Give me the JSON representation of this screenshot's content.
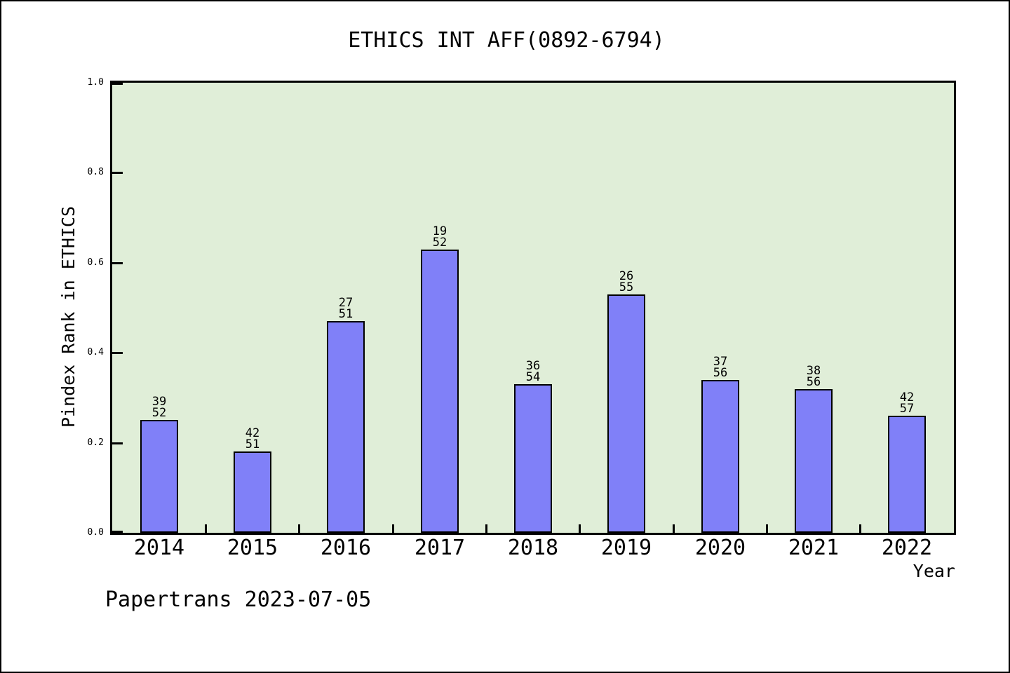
{
  "chart_data": {
    "type": "bar",
    "title": "ETHICS INT AFF(0892-6794)",
    "xlabel": "Year",
    "ylabel": "Pindex Rank in ETHICS",
    "ylim": [
      0.0,
      1.0
    ],
    "yticks": [
      0.0,
      0.2,
      0.4,
      0.6,
      0.8,
      1.0
    ],
    "grid": false,
    "legend": null,
    "categories": [
      "2014",
      "2015",
      "2016",
      "2017",
      "2018",
      "2019",
      "2020",
      "2021",
      "2022"
    ],
    "values": [
      0.25,
      0.18,
      0.47,
      0.63,
      0.33,
      0.53,
      0.34,
      0.32,
      0.26
    ],
    "bar_labels": [
      [
        "39",
        "52"
      ],
      [
        "42",
        "51"
      ],
      [
        "27",
        "51"
      ],
      [
        "19",
        "52"
      ],
      [
        "36",
        "54"
      ],
      [
        "26",
        "55"
      ],
      [
        "37",
        "56"
      ],
      [
        "38",
        "56"
      ],
      [
        "42",
        "57"
      ]
    ],
    "colors": {
      "bar_fill": "#8080f8",
      "bar_border": "#000000",
      "plot_background": "#e0eed8",
      "axis": "#000000",
      "text": "#000000"
    }
  },
  "footer": {
    "text": "Papertrans 2023-07-05"
  }
}
